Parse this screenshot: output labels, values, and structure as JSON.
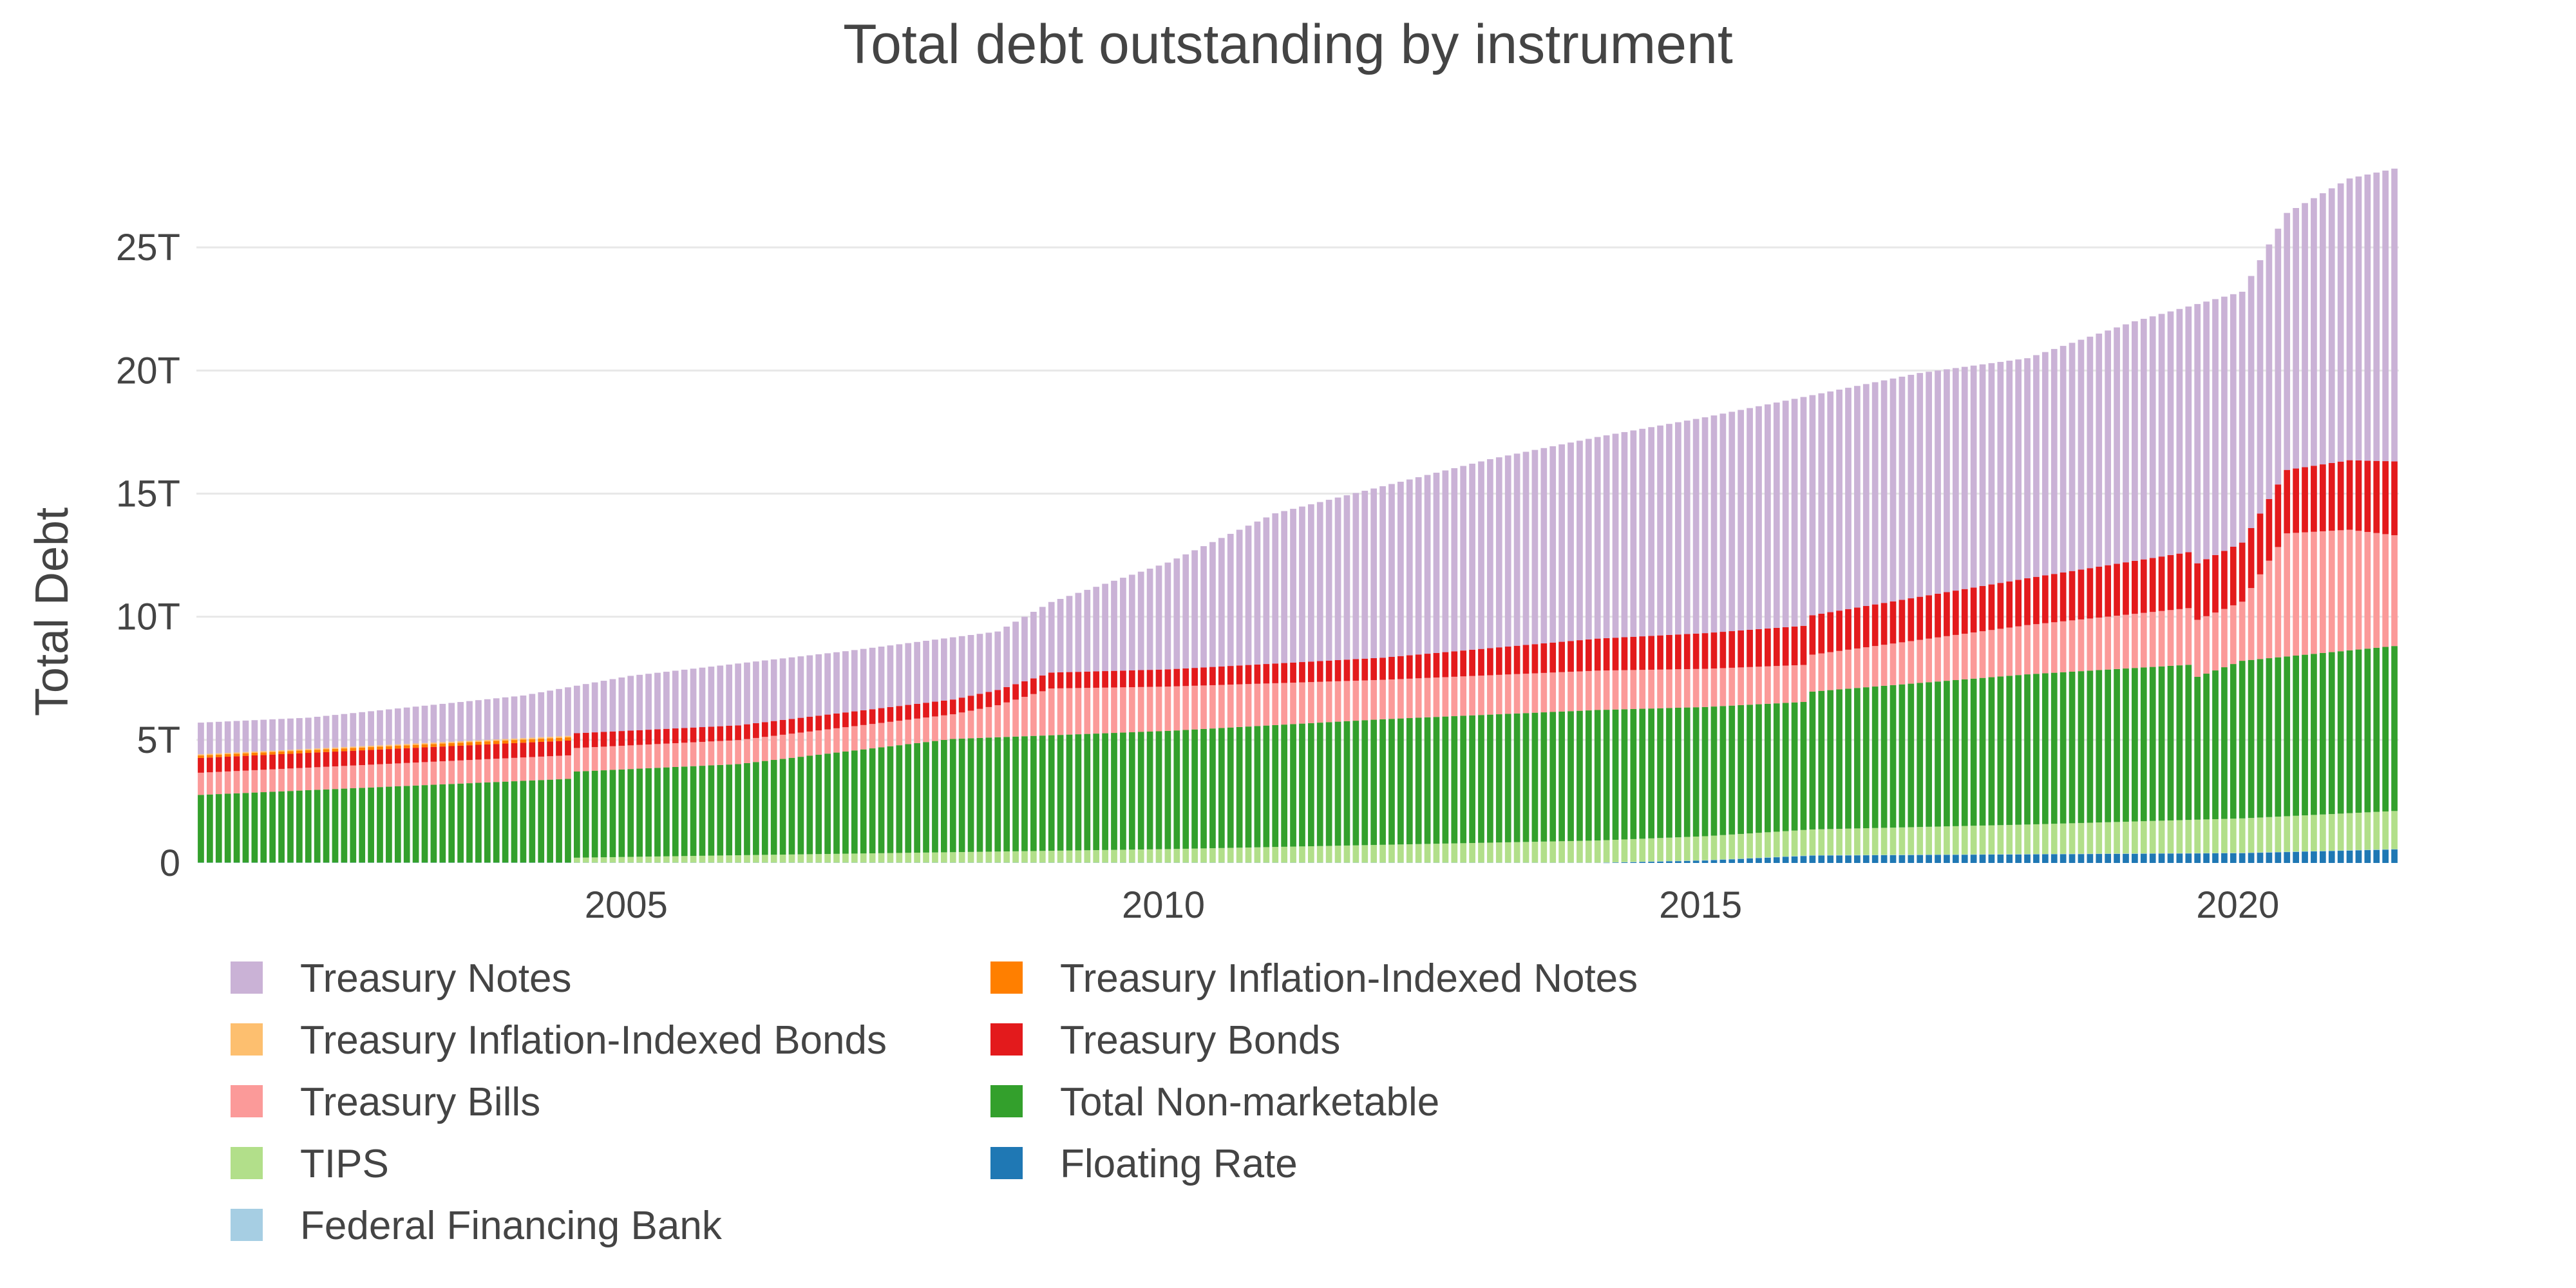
{
  "chart_data": {
    "type": "bar",
    "stacked": true,
    "title": "Total debt outstanding by instrument",
    "xlabel": "",
    "ylabel": "Total Debt",
    "x_start": "2001-01",
    "x_end": "2021-06",
    "interval": "monthly",
    "xlim": [
      "2001-01",
      "2021-06"
    ],
    "ylim": [
      0,
      28300000000000
    ],
    "x_ticks": [
      "2005",
      "2010",
      "2015",
      "2020"
    ],
    "y_ticks": [
      "0",
      "5T",
      "10T",
      "15T",
      "20T",
      "25T"
    ],
    "y_tick_values": [
      0,
      5000000000000,
      10000000000000,
      15000000000000,
      20000000000000,
      25000000000000
    ],
    "grid": true,
    "legend": "bottom",
    "series": [
      {
        "name": "Floating Rate",
        "color": "#1f78b4",
        "anchors": [
          [
            "2014-01",
            0
          ],
          [
            "2015-01",
            0.1
          ],
          [
            "2016-01",
            0.3
          ],
          [
            "2018-01",
            0.35
          ],
          [
            "2020-01",
            0.4
          ],
          [
            "2021-06",
            0.55
          ]
        ]
      },
      {
        "name": "Federal Financing Bank",
        "color": "#a6cee3",
        "anchors": [
          [
            "2001-01",
            0.015
          ],
          [
            "2021-06",
            0.01
          ]
        ]
      },
      {
        "name": "TIPS",
        "color": "#b2df8a",
        "anchors": [
          [
            "2001-01",
            0
          ],
          [
            "2004-06",
            0
          ],
          [
            "2004-07",
            0.2
          ],
          [
            "2006-01",
            0.3
          ],
          [
            "2010-01",
            0.55
          ],
          [
            "2014-01",
            0.9
          ],
          [
            "2016-01",
            1.05
          ],
          [
            "2018-01",
            1.2
          ],
          [
            "2020-01",
            1.4
          ],
          [
            "2021-06",
            1.55
          ]
        ]
      },
      {
        "name": "Total Non-marketable",
        "color": "#33a02c",
        "anchors": [
          [
            "2001-01",
            2.75
          ],
          [
            "2004-06",
            3.4
          ],
          [
            "2004-07",
            3.5
          ],
          [
            "2006-01",
            3.7
          ],
          [
            "2008-01",
            4.6
          ],
          [
            "2010-01",
            4.8
          ],
          [
            "2012-01",
            5.1
          ],
          [
            "2014-01",
            5.3
          ],
          [
            "2015-12",
            5.2
          ],
          [
            "2016-01",
            5.6
          ],
          [
            "2018-01",
            6.1
          ],
          [
            "2019-07",
            6.3
          ],
          [
            "2019-08",
            5.8
          ],
          [
            "2020-01",
            6.4
          ],
          [
            "2021-06",
            6.7
          ]
        ]
      },
      {
        "name": "Treasury Bills",
        "color": "#fb9a99",
        "anchors": [
          [
            "2001-01",
            0.9
          ],
          [
            "2004-01",
            0.95
          ],
          [
            "2008-01",
            1.0
          ],
          [
            "2008-06",
            1.3
          ],
          [
            "2008-12",
            1.9
          ],
          [
            "2010-01",
            1.8
          ],
          [
            "2012-01",
            1.6
          ],
          [
            "2014-01",
            1.6
          ],
          [
            "2016-01",
            1.5
          ],
          [
            "2018-01",
            2.0
          ],
          [
            "2020-01",
            2.4
          ],
          [
            "2020-06",
            5.0
          ],
          [
            "2021-01",
            4.9
          ],
          [
            "2021-06",
            4.5
          ]
        ]
      },
      {
        "name": "Treasury Bonds",
        "color": "#e31a1c",
        "anchors": [
          [
            "2001-01",
            0.6
          ],
          [
            "2008-01",
            0.6
          ],
          [
            "2010-01",
            0.7
          ],
          [
            "2012-01",
            0.9
          ],
          [
            "2014-01",
            1.3
          ],
          [
            "2016-01",
            1.6
          ],
          [
            "2018-01",
            1.9
          ],
          [
            "2020-01",
            2.4
          ],
          [
            "2021-06",
            3.0
          ]
        ]
      },
      {
        "name": "Treasury Inflation-Indexed Notes",
        "color": "#ff7f00",
        "anchors": [
          [
            "2001-01",
            0.1
          ],
          [
            "2004-06",
            0.13
          ]
        ]
      },
      {
        "name": "Treasury Inflation-Indexed Bonds",
        "color": "#fdbf6f",
        "anchors": [
          [
            "2001-01",
            0.05
          ],
          [
            "2004-06",
            0.06
          ]
        ]
      },
      {
        "name": "Treasury Notes",
        "color": "#cab2d6",
        "anchors": [
          [
            "2001-01",
            1.5
          ],
          [
            "2003-01",
            1.8
          ],
          [
            "2005-01",
            2.1
          ],
          [
            "2007-01",
            2.7
          ],
          [
            "2008-06",
            2.5
          ],
          [
            "2008-12",
            2.8
          ],
          [
            "2010-01",
            4.0
          ],
          [
            "2011-01",
            5.5
          ],
          [
            "2012-01",
            6.8
          ],
          [
            "2013-01",
            7.6
          ],
          [
            "2014-01",
            7.9
          ],
          [
            "2016-01",
            8.3
          ],
          [
            "2018-01",
            8.8
          ],
          [
            "2019-01",
            9.4
          ],
          [
            "2020-01",
            10.1
          ],
          [
            "2021-01",
            10.7
          ],
          [
            "2021-06",
            11.8
          ]
        ]
      }
    ],
    "total_anchors": [
      [
        "2001-01",
        5.7
      ],
      [
        "2002-01",
        5.9
      ],
      [
        "2004-01",
        6.8
      ],
      [
        "2005-01",
        7.6
      ],
      [
        "2007-01",
        8.6
      ],
      [
        "2008-06",
        9.4
      ],
      [
        "2008-12",
        10.6
      ],
      [
        "2010-01",
        12.2
      ],
      [
        "2011-01",
        14.2
      ],
      [
        "2012-01",
        15.3
      ],
      [
        "2013-01",
        16.4
      ],
      [
        "2014-01",
        17.3
      ],
      [
        "2015-01",
        18.1
      ],
      [
        "2016-01",
        19.0
      ],
      [
        "2017-01",
        19.9
      ],
      [
        "2018-01",
        20.5
      ],
      [
        "2019-01",
        22.0
      ],
      [
        "2020-01",
        23.2
      ],
      [
        "2020-06",
        26.4
      ],
      [
        "2021-01",
        27.8
      ],
      [
        "2021-06",
        28.2
      ]
    ],
    "legend_order": [
      "Treasury Notes",
      "Treasury Inflation-Indexed Notes",
      "Treasury Inflation-Indexed Bonds",
      "Treasury Bonds",
      "Treasury Bills",
      "Total Non-marketable",
      "TIPS",
      "Floating Rate",
      "Federal Financing Bank"
    ]
  }
}
